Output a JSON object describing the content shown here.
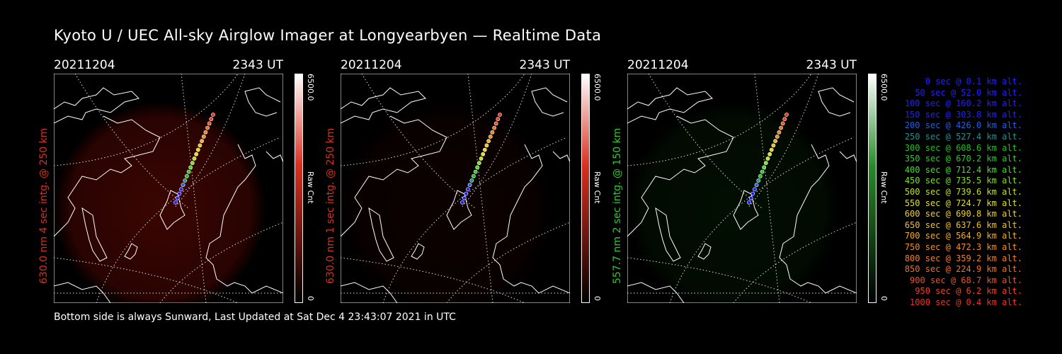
{
  "title": "Kyoto U / UEC All-sky Airglow Imager at Longyearbyen — Realtime Data",
  "footer": "Bottom side is always Sunward, Last Updated at Sat Dec  4 23:43:07 2021 in UTC",
  "panels": [
    {
      "date": "20211204",
      "time": "2343 UT",
      "label": "630.0 nm 4 sec intg. @ 250 km",
      "label_color": "#d83020",
      "cbar_max": "6500.0",
      "cbar_unit": "Raw Cnt",
      "cbar_min": "0",
      "tint": "#6a0a04",
      "glow": 0.55
    },
    {
      "date": "20211204",
      "time": "2343 UT",
      "label": "630.0 nm 1 sec intg. @ 250 km",
      "label_color": "#d83020",
      "cbar_max": "6500.0",
      "cbar_unit": "Raw Cnt",
      "cbar_min": "0",
      "tint": "#3a0502",
      "glow": 0.2
    },
    {
      "date": "20211204",
      "time": "2343 UT",
      "label": "557.7 nm 2 sec intg. @ 150 km",
      "label_color": "#30c830",
      "cbar_max": "6500.0",
      "cbar_unit": "Raw Cnt",
      "cbar_min": "0",
      "tint": "#0a3a0a",
      "glow": 0.25
    }
  ],
  "legend": [
    {
      "text": "0 sec @   0.1 km alt.",
      "color": "#2020ff"
    },
    {
      "text": "50 sec @  52.0 km alt.",
      "color": "#2020ff"
    },
    {
      "text": "100 sec @ 160.2 km alt.",
      "color": "#2020ff"
    },
    {
      "text": "150 sec @ 303.8 km alt.",
      "color": "#2020ff"
    },
    {
      "text": "200 sec @ 426.0 km alt.",
      "color": "#2060e0"
    },
    {
      "text": "250 sec @ 527.4 km alt.",
      "color": "#209090"
    },
    {
      "text": "300 sec @ 608.6 km alt.",
      "color": "#20c020"
    },
    {
      "text": "350 sec @ 670.2 km alt.",
      "color": "#20d020"
    },
    {
      "text": "400 sec @ 712.4 km alt.",
      "color": "#40e020"
    },
    {
      "text": "450 sec @ 735.5 km alt.",
      "color": "#80e020"
    },
    {
      "text": "500 sec @ 739.6 km alt.",
      "color": "#c0e020"
    },
    {
      "text": "550 sec @ 724.7 km alt.",
      "color": "#e0e020"
    },
    {
      "text": "600 sec @ 690.8 km alt.",
      "color": "#f0d020"
    },
    {
      "text": "650 sec @ 637.6 km alt.",
      "color": "#f0c020"
    },
    {
      "text": "700 sec @ 564.9 km alt.",
      "color": "#f0b020"
    },
    {
      "text": "750 sec @ 472.3 km alt.",
      "color": "#f09020"
    },
    {
      "text": "800 sec @ 359.2 km alt.",
      "color": "#f08020"
    },
    {
      "text": "850 sec @ 224.9 km alt.",
      "color": "#f07020"
    },
    {
      "text": "900 sec @  68.7 km alt.",
      "color": "#f05020"
    },
    {
      "text": "950 sec @   6.2 km alt.",
      "color": "#f04020"
    },
    {
      "text": "1000 sec @   0.4 km alt.",
      "color": "#f03020"
    }
  ]
}
